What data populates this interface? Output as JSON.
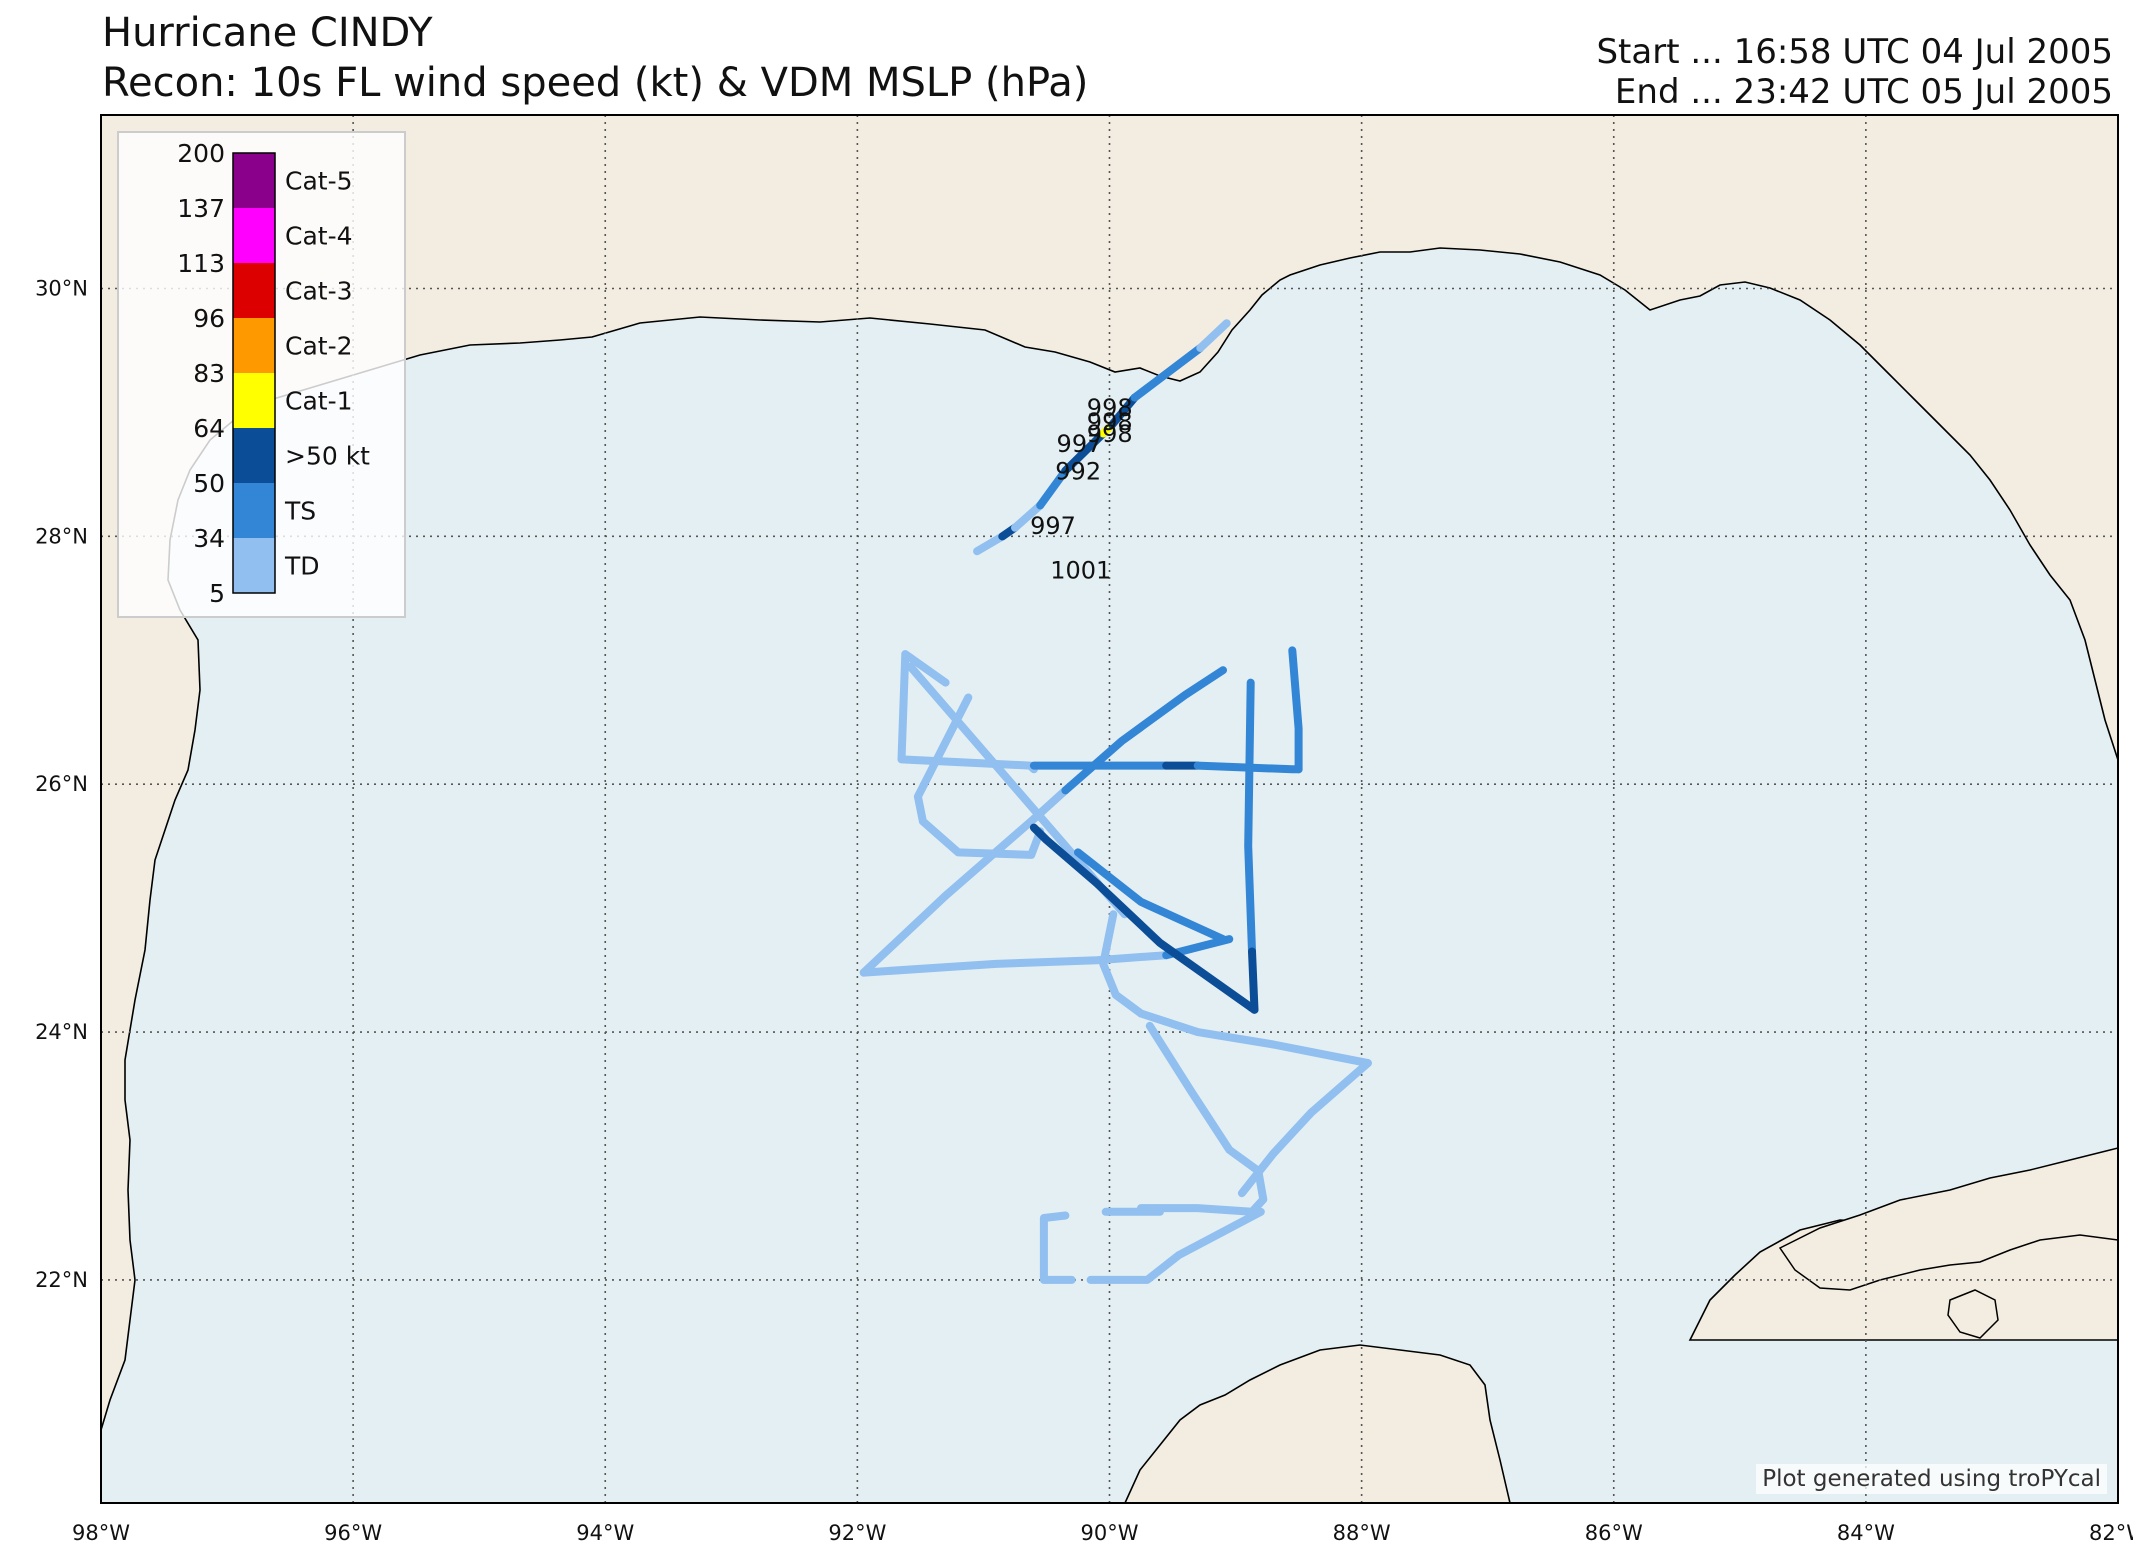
{
  "header": {
    "title_line1": "Hurricane CINDY",
    "title_line2": "Recon: 10s FL wind speed (kt) & VDM MSLP (hPa)",
    "start": "Start ... 16:58 UTC 04 Jul 2005",
    "end": "End ... 23:42 UTC 05 Jul 2005"
  },
  "credit": "Plot generated using troPYcal",
  "chart_data": {
    "type": "map",
    "extent": {
      "lon": [
        -98,
        -82
      ],
      "lat": [
        20.2,
        31.4
      ]
    },
    "gridlines": true,
    "lon_ticks": [
      {
        "v": -98,
        "label": "98°W"
      },
      {
        "v": -96,
        "label": "96°W"
      },
      {
        "v": -94,
        "label": "94°W"
      },
      {
        "v": -92,
        "label": "92°W"
      },
      {
        "v": -90,
        "label": "90°W"
      },
      {
        "v": -88,
        "label": "88°W"
      },
      {
        "v": -86,
        "label": "86°W"
      },
      {
        "v": -84,
        "label": "84°W"
      },
      {
        "v": -82,
        "label": "82°W"
      }
    ],
    "lat_ticks": [
      {
        "v": 30,
        "label": "30°N"
      },
      {
        "v": 28,
        "label": "28°N"
      },
      {
        "v": 26,
        "label": "26°N"
      },
      {
        "v": 24,
        "label": "24°N"
      },
      {
        "v": 22,
        "label": "22°N"
      }
    ],
    "legend": {
      "placement": "top-left",
      "bounds": [
        "200",
        "137",
        "113",
        "96",
        "83",
        "64",
        "50",
        "34",
        "5"
      ],
      "categories": [
        {
          "label": "Cat-5",
          "color": "#8b008b"
        },
        {
          "label": "Cat-4",
          "color": "#ff00ff"
        },
        {
          "label": "Cat-3",
          "color": "#dd0000"
        },
        {
          "label": "Cat-2",
          "color": "#ff9900"
        },
        {
          "label": "Cat-1",
          "color": "#ffff00"
        },
        {
          "label": ">50 kt",
          "color": "#0b4d96"
        },
        {
          "label": "TS",
          "color": "#3385d6"
        },
        {
          "label": "TD",
          "color": "#90bff0"
        }
      ]
    },
    "colors": {
      "ocean": "#e3eff2",
      "land": "#f3ece0",
      "coast": "#000000",
      "border": "#aaaaaa"
    },
    "mslp_labels": [
      {
        "text": "998",
        "lon": -90.18,
        "lat": 28.97
      },
      {
        "text": "998",
        "lon": -90.18,
        "lat": 28.86
      },
      {
        "text": "998",
        "lon": -90.18,
        "lat": 28.76
      },
      {
        "text": "997",
        "lon": -90.42,
        "lat": 28.68
      },
      {
        "text": "992",
        "lon": -90.43,
        "lat": 28.46
      },
      {
        "text": "997",
        "lon": -90.63,
        "lat": 28.02
      },
      {
        "text": "1001",
        "lon": -90.47,
        "lat": 27.66
      }
    ],
    "flight_segments": [
      {
        "cat": "TD",
        "points": [
          [
            -91.05,
            27.88
          ],
          [
            -90.85,
            28.0
          ]
        ]
      },
      {
        "cat": ">50 kt",
        "points": [
          [
            -90.85,
            28.0
          ],
          [
            -90.75,
            28.07
          ]
        ]
      },
      {
        "cat": "TD",
        "points": [
          [
            -90.75,
            28.07
          ],
          [
            -90.55,
            28.25
          ]
        ]
      },
      {
        "cat": "TS",
        "points": [
          [
            -90.55,
            28.25
          ],
          [
            -90.35,
            28.53
          ]
        ]
      },
      {
        "cat": ">50 kt",
        "points": [
          [
            -90.35,
            28.53
          ],
          [
            -90.05,
            28.83
          ]
        ]
      },
      {
        "cat": "Cat-1",
        "points": [
          [
            -90.05,
            28.83
          ],
          [
            -89.98,
            28.9
          ]
        ]
      },
      {
        "cat": ">50 kt",
        "points": [
          [
            -89.98,
            28.9
          ],
          [
            -89.8,
            29.12
          ]
        ]
      },
      {
        "cat": "TS",
        "points": [
          [
            -89.8,
            29.12
          ],
          [
            -89.28,
            29.52
          ]
        ]
      },
      {
        "cat": "TD",
        "points": [
          [
            -89.28,
            29.52
          ],
          [
            -89.07,
            29.72
          ]
        ]
      },
      {
        "cat": "TD",
        "points": [
          [
            -91.3,
            26.82
          ],
          [
            -91.62,
            27.05
          ],
          [
            -91.65,
            26.2
          ],
          [
            -90.63,
            26.15
          ],
          [
            -90.6,
            26.12
          ]
        ]
      },
      {
        "cat": "TD",
        "points": [
          [
            -91.12,
            26.7
          ],
          [
            -91.52,
            25.9
          ],
          [
            -91.48,
            25.7
          ],
          [
            -91.2,
            25.45
          ],
          [
            -90.62,
            25.43
          ],
          [
            -90.55,
            25.62
          ]
        ]
      },
      {
        "cat": "TD",
        "points": [
          [
            -91.58,
            26.95
          ],
          [
            -89.88,
            24.95
          ]
        ]
      },
      {
        "cat": "TD",
        "points": [
          [
            -91.95,
            24.48
          ],
          [
            -91.3,
            25.1
          ],
          [
            -90.6,
            25.72
          ]
        ]
      },
      {
        "cat": "TD",
        "points": [
          [
            -90.6,
            25.72
          ],
          [
            -90.35,
            25.95
          ]
        ]
      },
      {
        "cat": "TS",
        "points": [
          [
            -90.35,
            25.95
          ],
          [
            -89.9,
            26.35
          ],
          [
            -89.4,
            26.72
          ],
          [
            -89.1,
            26.92
          ]
        ]
      },
      {
        "cat": "TD",
        "points": [
          [
            -91.95,
            24.48
          ],
          [
            -90.9,
            24.55
          ],
          [
            -90.1,
            24.58
          ],
          [
            -89.55,
            24.62
          ]
        ]
      },
      {
        "cat": "TS",
        "points": [
          [
            -89.55,
            24.62
          ],
          [
            -89.05,
            24.75
          ]
        ]
      },
      {
        "cat": "TS",
        "points": [
          [
            -90.6,
            26.15
          ],
          [
            -90.1,
            26.15
          ],
          [
            -89.55,
            26.15
          ]
        ]
      },
      {
        "cat": ">50 kt",
        "points": [
          [
            -89.55,
            26.15
          ],
          [
            -89.3,
            26.15
          ]
        ]
      },
      {
        "cat": "TS",
        "points": [
          [
            -89.3,
            26.15
          ],
          [
            -88.55,
            26.12
          ],
          [
            -88.5,
            26.12
          ]
        ]
      },
      {
        "cat": "TS",
        "points": [
          [
            -88.5,
            26.12
          ],
          [
            -88.5,
            26.45
          ],
          [
            -88.55,
            27.08
          ]
        ]
      },
      {
        "cat": "TS",
        "points": [
          [
            -88.88,
            26.82
          ],
          [
            -88.9,
            25.5
          ],
          [
            -88.87,
            24.65
          ]
        ]
      },
      {
        "cat": ">50 kt",
        "points": [
          [
            -88.87,
            24.65
          ],
          [
            -88.85,
            24.18
          ]
        ]
      },
      {
        "cat": ">50 kt",
        "points": [
          [
            -88.85,
            24.18
          ],
          [
            -89.6,
            24.72
          ],
          [
            -90.1,
            25.2
          ],
          [
            -90.5,
            25.55
          ],
          [
            -90.6,
            25.65
          ]
        ]
      },
      {
        "cat": "TS",
        "points": [
          [
            -90.25,
            25.45
          ],
          [
            -89.75,
            25.05
          ],
          [
            -89.1,
            24.75
          ]
        ]
      },
      {
        "cat": "TD",
        "points": [
          [
            -89.97,
            24.95
          ],
          [
            -90.05,
            24.55
          ],
          [
            -89.95,
            24.3
          ],
          [
            -89.75,
            24.15
          ]
        ]
      },
      {
        "cat": "TD",
        "points": [
          [
            -89.75,
            24.15
          ],
          [
            -89.3,
            24.0
          ],
          [
            -88.7,
            23.9
          ],
          [
            -88.3,
            23.82
          ],
          [
            -87.95,
            23.75
          ]
        ]
      },
      {
        "cat": "TD",
        "points": [
          [
            -87.95,
            23.75
          ],
          [
            -88.4,
            23.35
          ],
          [
            -88.7,
            23.02
          ],
          [
            -88.95,
            22.7
          ]
        ]
      },
      {
        "cat": "TD",
        "points": [
          [
            -89.68,
            24.05
          ],
          [
            -89.35,
            23.52
          ],
          [
            -89.05,
            23.05
          ],
          [
            -88.82,
            22.88
          ],
          [
            -88.78,
            22.65
          ],
          [
            -88.87,
            22.55
          ],
          [
            -89.3,
            22.58
          ],
          [
            -89.75,
            22.58
          ]
        ]
      },
      {
        "cat": "TD",
        "points": [
          [
            -88.8,
            22.55
          ],
          [
            -89.45,
            22.2
          ],
          [
            -89.7,
            22.0
          ],
          [
            -90.15,
            22.0
          ]
        ]
      },
      {
        "cat": "TD",
        "points": [
          [
            -90.3,
            22.0
          ],
          [
            -90.52,
            22.0
          ],
          [
            -90.52,
            22.5
          ],
          [
            -90.35,
            22.52
          ]
        ]
      },
      {
        "cat": "TD",
        "points": [
          [
            -90.03,
            22.55
          ],
          [
            -89.6,
            22.55
          ]
        ]
      }
    ]
  }
}
